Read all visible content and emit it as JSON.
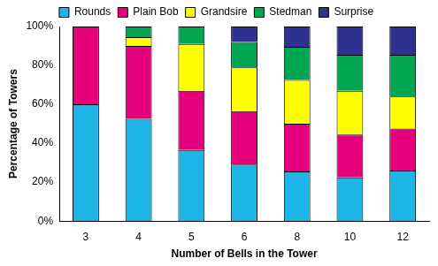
{
  "chart_data": {
    "type": "bar",
    "stacked": true,
    "legend": "top",
    "grid": false,
    "x_label": "Number of Bells in the Tower",
    "y_label": "Percentage of Towers",
    "categories": [
      "3",
      "4",
      "5",
      "6",
      "8",
      "10",
      "12"
    ],
    "series": [
      {
        "name": "Rounds",
        "color": "#1db4e6",
        "values": [
          60,
          52.5,
          36.5,
          29,
          25.5,
          22.5,
          26
        ]
      },
      {
        "name": "Plain Bob",
        "color": "#e6007e",
        "values": [
          40,
          37.5,
          30.5,
          27.5,
          24.5,
          22,
          21.5
        ]
      },
      {
        "name": "Grandsire",
        "color": "#ffff00",
        "values": [
          0,
          4.5,
          24,
          22.5,
          22.5,
          22.5,
          16.5
        ]
      },
      {
        "name": "Stedman",
        "color": "#00a651",
        "values": [
          0,
          5.5,
          9,
          13,
          17,
          18.5,
          21.5
        ]
      },
      {
        "name": "Surprise",
        "color": "#2e3192",
        "values": [
          0,
          0,
          0,
          8,
          10.5,
          14.5,
          14.5
        ]
      }
    ],
    "ylim": [
      0,
      100
    ],
    "yticks": [
      {
        "value": 0,
        "label": "0%"
      },
      {
        "value": 20,
        "label": "20%"
      },
      {
        "value": 40,
        "label": "40%"
      },
      {
        "value": 60,
        "label": "60%"
      },
      {
        "value": 80,
        "label": "80%"
      },
      {
        "value": 100,
        "label": "100%"
      }
    ]
  }
}
